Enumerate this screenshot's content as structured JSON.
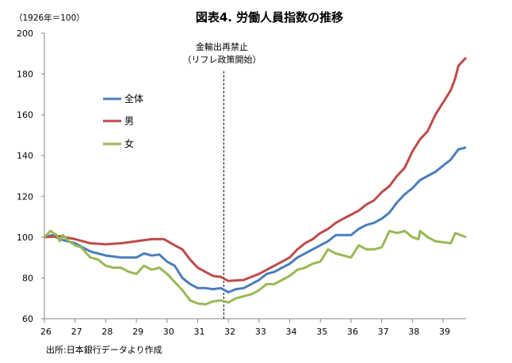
{
  "chart_data": {
    "type": "line",
    "title": "図表4. 労働人員指数の推移",
    "ylabel": "（1926年＝100）",
    "xlabel": "",
    "source": "出所:日本銀行データより作成",
    "xlim": [
      26,
      39.75
    ],
    "ylim": [
      60,
      200
    ],
    "xticks": [
      26,
      27,
      28,
      29,
      30,
      31,
      32,
      33,
      34,
      35,
      36,
      37,
      38,
      39
    ],
    "yticks": [
      60,
      80,
      100,
      120,
      140,
      160,
      180,
      200
    ],
    "grid": false,
    "legend_placement": "upper-left inside",
    "annotation": {
      "x": 31.85,
      "line1": "金輸出再禁止",
      "line2": "（リフレ政策開始）",
      "style": "dashed-vertical"
    },
    "series": [
      {
        "name": "全体",
        "color": "#4a7ebb",
        "x": [
          26,
          26.25,
          26.5,
          26.75,
          27,
          27.25,
          27.5,
          27.75,
          28,
          28.25,
          28.5,
          28.75,
          29,
          29.25,
          29.5,
          29.75,
          30,
          30.25,
          30.5,
          30.75,
          31,
          31.25,
          31.5,
          31.75,
          32,
          32.25,
          32.5,
          32.75,
          33,
          33.25,
          33.5,
          33.75,
          34,
          34.25,
          34.5,
          34.75,
          35,
          35.25,
          35.5,
          35.75,
          36,
          36.25,
          36.5,
          36.75,
          37,
          37.25,
          37.5,
          37.75,
          38,
          38.25,
          38.5,
          38.75,
          39,
          39.25,
          39.5,
          39.75
        ],
        "values": [
          100,
          101,
          99,
          98,
          97,
          95,
          93,
          92,
          91,
          90.5,
          90,
          90,
          90,
          92,
          91,
          91.5,
          88,
          86,
          80,
          77,
          75,
          75,
          74.5,
          75,
          73,
          74.5,
          75,
          77,
          79,
          82,
          83,
          85,
          87,
          90,
          92,
          94,
          96,
          98,
          101,
          101,
          101,
          104,
          106,
          107,
          109,
          112,
          117,
          121,
          124,
          128,
          130,
          132,
          135,
          138,
          143,
          144
        ]
      },
      {
        "name": "男",
        "color": "#be4b48",
        "x": [
          26,
          26.5,
          27,
          27.5,
          28,
          28.5,
          29,
          29.5,
          29.9,
          30.25,
          30.5,
          30.75,
          31,
          31.5,
          31.75,
          32,
          32.5,
          33,
          33.5,
          34,
          34.25,
          34.5,
          34.75,
          35,
          35.25,
          35.5,
          35.75,
          36,
          36.25,
          36.5,
          36.75,
          37,
          37.25,
          37.5,
          37.75,
          38,
          38.25,
          38.5,
          38.75,
          39,
          39.25,
          39.4,
          39.5,
          39.75
        ],
        "values": [
          100,
          100.5,
          99,
          97,
          96.5,
          97,
          98,
          99,
          99,
          96,
          94,
          89,
          85,
          81,
          80.5,
          78.5,
          79,
          82,
          86,
          90,
          94,
          97,
          99,
          102,
          104,
          107,
          109,
          111,
          113,
          116,
          118,
          122,
          125,
          130,
          134,
          142,
          148,
          152,
          160,
          166,
          172,
          178,
          184,
          188
        ]
      },
      {
        "name": "女",
        "color": "#98b954",
        "x": [
          26,
          26.2,
          26.4,
          26.5,
          26.6,
          26.8,
          27,
          27.2,
          27.5,
          27.75,
          28,
          28.25,
          28.5,
          28.75,
          29,
          29.25,
          29.5,
          29.75,
          30,
          30.25,
          30.5,
          30.75,
          31,
          31.25,
          31.5,
          31.75,
          32,
          32.25,
          32.5,
          32.75,
          33,
          33.25,
          33.5,
          33.75,
          34,
          34.25,
          34.5,
          34.75,
          35,
          35.25,
          35.5,
          35.75,
          36,
          36.25,
          36.5,
          36.75,
          37,
          37.25,
          37.5,
          37.75,
          38,
          38.2,
          38.25,
          38.5,
          38.75,
          39,
          39.25,
          39.4,
          39.75
        ],
        "values": [
          100,
          103,
          101,
          98,
          101,
          98,
          96,
          95,
          90,
          89,
          86,
          85,
          85,
          83,
          82,
          86,
          84,
          85,
          82,
          78,
          74,
          69,
          67.5,
          67,
          68.5,
          69,
          68,
          70,
          71,
          72,
          74,
          77,
          77,
          79,
          81,
          84,
          85,
          87,
          88,
          94,
          92,
          91,
          90,
          96,
          94,
          94,
          95,
          103,
          102,
          103,
          100,
          99,
          103,
          100,
          98,
          97.5,
          97,
          102,
          100
        ]
      }
    ]
  }
}
